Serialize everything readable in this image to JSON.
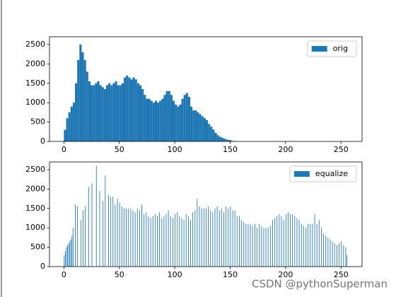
{
  "chart_data": [
    {
      "type": "histogram",
      "legend": "upper right",
      "series": [
        {
          "name": "orig",
          "color": "#1f77b4",
          "bins": [
            0,
            2,
            4,
            6,
            8,
            10,
            12,
            14,
            16,
            18,
            20,
            22,
            24,
            26,
            28,
            30,
            32,
            34,
            36,
            38,
            40,
            42,
            44,
            46,
            48,
            50,
            52,
            54,
            56,
            58,
            60,
            62,
            64,
            66,
            68,
            70,
            72,
            74,
            76,
            78,
            80,
            82,
            84,
            86,
            88,
            90,
            92,
            94,
            96,
            98,
            100,
            102,
            104,
            106,
            108,
            110,
            112,
            114,
            116,
            118,
            120,
            122,
            124,
            126,
            128,
            130,
            132,
            134,
            136,
            138,
            140,
            142,
            144,
            146,
            148,
            150,
            152,
            154,
            156
          ],
          "values": [
            300,
            600,
            750,
            900,
            1000,
            1500,
            2100,
            2500,
            2300,
            2100,
            1800,
            1550,
            1450,
            1450,
            1500,
            1550,
            1450,
            1400,
            1350,
            1450,
            1500,
            1450,
            1500,
            1550,
            1450,
            1450,
            1500,
            1650,
            1700,
            1650,
            1600,
            1650,
            1600,
            1500,
            1450,
            1350,
            1200,
            1100,
            1100,
            1050,
            1000,
            1050,
            1000,
            1050,
            1100,
            1200,
            1300,
            1300,
            1200,
            1050,
            950,
            900,
            950,
            1100,
            1200,
            1250,
            1150,
            900,
            800,
            800,
            750,
            700,
            650,
            600,
            550,
            450,
            380,
            300,
            220,
            160,
            120,
            90,
            70,
            50,
            40,
            25,
            10,
            5
          ]
        }
      ],
      "xlim": [
        -13,
        269
      ],
      "xticks": [
        0,
        50,
        100,
        150,
        200,
        250
      ],
      "ylim": [
        0,
        2700
      ],
      "yticks": [
        0,
        500,
        1000,
        1500,
        2000,
        2500
      ]
    },
    {
      "type": "bar",
      "legend": "upper right",
      "series": [
        {
          "name": "equalize",
          "color": "#1f77b4",
          "x": [
            0,
            1,
            2,
            3,
            4,
            5,
            6,
            7,
            8,
            10,
            12,
            15,
            17,
            19,
            22,
            25,
            29,
            32,
            35,
            37,
            40,
            42,
            44,
            46,
            48,
            50,
            52,
            54,
            56,
            58,
            60,
            62,
            64,
            66,
            68,
            70,
            72,
            74,
            76,
            78,
            80,
            82,
            84,
            86,
            88,
            90,
            92,
            94,
            96,
            98,
            100,
            102,
            104,
            106,
            108,
            110,
            112,
            114,
            116,
            118,
            120,
            122,
            124,
            126,
            128,
            130,
            132,
            134,
            136,
            138,
            140,
            142,
            144,
            146,
            148,
            150,
            152,
            154,
            156,
            158,
            160,
            162,
            164,
            166,
            168,
            170,
            172,
            174,
            176,
            178,
            180,
            182,
            184,
            186,
            188,
            190,
            192,
            194,
            196,
            198,
            200,
            202,
            204,
            206,
            208,
            210,
            212,
            214,
            216,
            218,
            220,
            222,
            224,
            226,
            228,
            230,
            232,
            234,
            236,
            238,
            240,
            242,
            244,
            246,
            248,
            250,
            252,
            254,
            255
          ],
          "values": [
            300,
            400,
            500,
            550,
            600,
            650,
            700,
            800,
            1000,
            1600,
            1550,
            1200,
            1450,
            1550,
            2050,
            2150,
            2600,
            1950,
            1700,
            2350,
            1850,
            1800,
            1800,
            1600,
            1750,
            1650,
            1550,
            1500,
            1500,
            1500,
            1500,
            1450,
            1400,
            1500,
            1450,
            1600,
            1350,
            1400,
            1300,
            1250,
            1300,
            1350,
            1300,
            1400,
            1250,
            1300,
            1350,
            1450,
            1300,
            1250,
            1350,
            1400,
            1300,
            1250,
            1200,
            1350,
            1300,
            1200,
            1400,
            1450,
            1750,
            1550,
            1500,
            1500,
            1500,
            1550,
            1450,
            1400,
            1500,
            1550,
            1450,
            1500,
            1400,
            1550,
            1500,
            1550,
            1450,
            1450,
            1300,
            1300,
            1200,
            1150,
            1100,
            1100,
            1100,
            1050,
            1100,
            1000,
            1100,
            1050,
            1000,
            1000,
            1000,
            1050,
            1200,
            1250,
            1300,
            1350,
            1300,
            1200,
            1350,
            1400,
            1350,
            1350,
            1300,
            1250,
            1200,
            1100,
            1050,
            1000,
            1100,
            1100,
            1100,
            1350,
            1100,
            1200,
            1000,
            850,
            800,
            750,
            700,
            650,
            600,
            550,
            600,
            650,
            550,
            500,
            300
          ]
        }
      ],
      "xlim": [
        -13,
        269
      ],
      "xticks": [
        0,
        50,
        100,
        150,
        200,
        250
      ],
      "ylim": [
        0,
        2700
      ],
      "yticks": [
        0,
        500,
        1000,
        1500,
        2000,
        2500
      ]
    }
  ],
  "watermark": "CSDN @pythonSuperman"
}
